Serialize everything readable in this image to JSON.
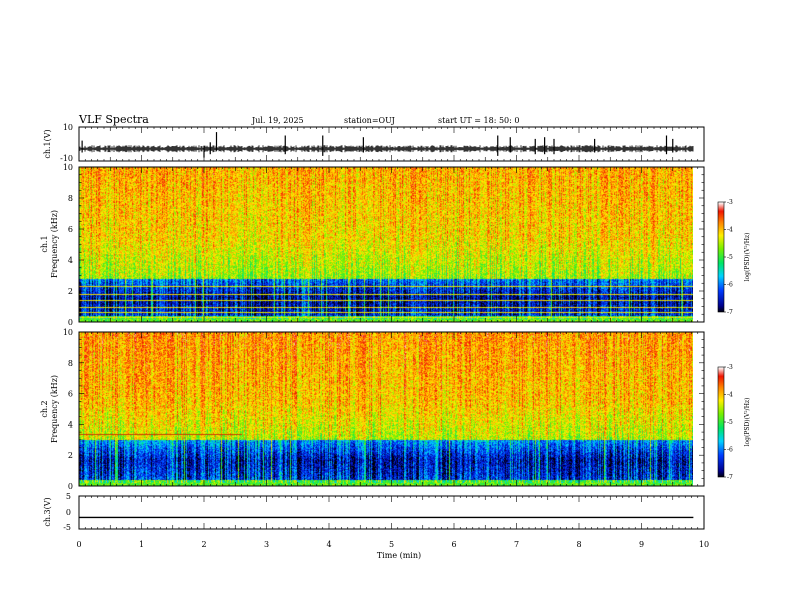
{
  "header": {
    "title": "VLF Spectra",
    "date": "Jul. 19, 2025",
    "station": "station=OUJ",
    "start": "start UT =  18: 50: 0"
  },
  "chart_data": [
    {
      "type": "line",
      "name": "ch1-waveform",
      "ylabel": "ch.1(V)",
      "ylim": [
        -10,
        10
      ],
      "yticks": [
        "10",
        "-10"
      ],
      "xlim": [
        0,
        10
      ],
      "x_end": 9.83,
      "baseline": -2.8,
      "noise_amplitude": 1.6,
      "spikes": [
        {
          "t": 0.05,
          "lo": -5,
          "hi": 2
        },
        {
          "t": 2.0,
          "lo": -8,
          "hi": -1
        },
        {
          "t": 2.1,
          "lo": -6,
          "hi": 1
        },
        {
          "t": 2.2,
          "lo": -4,
          "hi": 7
        },
        {
          "t": 3.3,
          "lo": -6,
          "hi": 5
        },
        {
          "t": 3.9,
          "lo": -7,
          "hi": 5
        },
        {
          "t": 4.55,
          "lo": -5,
          "hi": 4
        },
        {
          "t": 6.7,
          "lo": -7,
          "hi": 5
        },
        {
          "t": 6.9,
          "lo": -5,
          "hi": 4
        },
        {
          "t": 7.3,
          "lo": -6,
          "hi": 3
        },
        {
          "t": 7.45,
          "lo": -6,
          "hi": 4
        },
        {
          "t": 7.6,
          "lo": -6,
          "hi": 3
        },
        {
          "t": 8.25,
          "lo": -5,
          "hi": 3
        },
        {
          "t": 9.4,
          "lo": -6,
          "hi": 5
        },
        {
          "t": 9.5,
          "lo": -5,
          "hi": 3
        }
      ]
    },
    {
      "type": "heatmap",
      "name": "ch1-spectrogram",
      "ylabel_lines": [
        "ch.1",
        "Frequency (kHz)"
      ],
      "ylim": [
        0,
        10
      ],
      "yticks": [
        "0",
        "2",
        "4",
        "6",
        "8",
        "10"
      ],
      "xlim": [
        0,
        10
      ],
      "x_end": 9.83,
      "zlim": [
        -7,
        -3
      ],
      "colorbar_label": "log(PSD)(V²/Hz)",
      "colorbar_ticks": [
        "-3",
        "-4",
        "-5",
        "-6",
        "-7"
      ],
      "quiet_band_khz": [
        0.4,
        2.8
      ],
      "hum_lines_khz": [
        0.3,
        0.65,
        1.0,
        1.45,
        1.8,
        2.3
      ]
    },
    {
      "type": "heatmap",
      "name": "ch2-spectrogram",
      "ylabel_lines": [
        "ch.2",
        "Frequency (kHz)"
      ],
      "ylim": [
        0,
        10
      ],
      "yticks": [
        "0",
        "2",
        "4",
        "6",
        "8",
        "10"
      ],
      "xlim": [
        0,
        10
      ],
      "x_end": 9.83,
      "zlim": [
        -7,
        -3
      ],
      "colorbar_label": "log(PSD)(V²/Hz)",
      "colorbar_ticks": [
        "-3",
        "-4",
        "-5",
        "-6",
        "-7"
      ],
      "quiet_band_khz": [
        0.4,
        3.0
      ],
      "tone_line": {
        "khz": 3.4,
        "t_end": 2.6
      }
    },
    {
      "type": "line",
      "name": "ch3-waveform",
      "ylabel": "ch.3(V)",
      "ylim": [
        -5,
        5
      ],
      "yticks": [
        "5",
        "0",
        "-5"
      ],
      "xlim": [
        0,
        10
      ],
      "x": [
        0,
        9.83
      ],
      "values": [
        -1.5,
        -1.5
      ]
    }
  ],
  "x_axis": {
    "label": "Time (min)",
    "ticks": [
      "0",
      "1",
      "2",
      "3",
      "4",
      "5",
      "6",
      "7",
      "8",
      "9",
      "10"
    ]
  }
}
